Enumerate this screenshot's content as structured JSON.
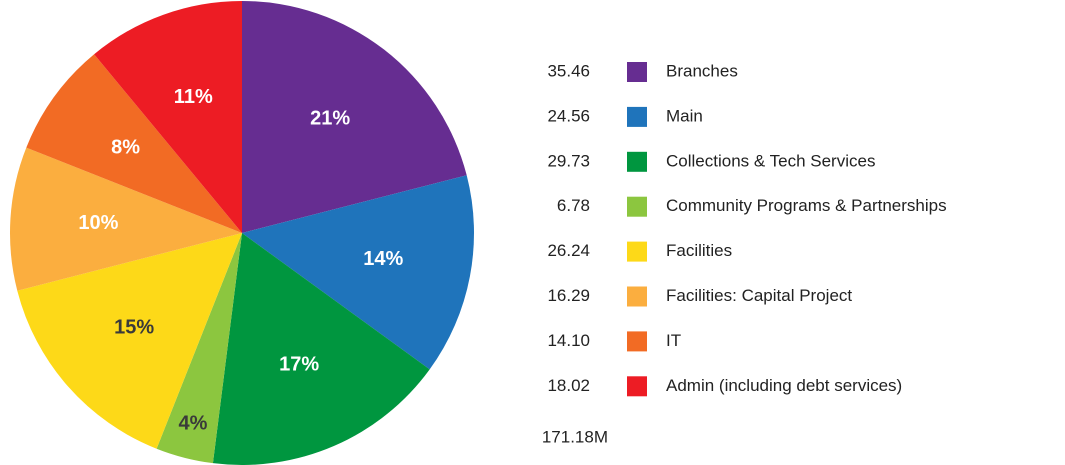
{
  "chart_data": {
    "type": "pie",
    "categories": [
      "Branches",
      "Main",
      "Collections & Tech Services",
      "Community Programs & Partnerships",
      "Facilities",
      "Facilities: Capital Project",
      "IT",
      "Admin (including debt services)"
    ],
    "values": [
      21,
      14,
      17,
      4,
      15,
      10,
      8,
      11
    ],
    "value_labels": [
      "21%",
      "14%",
      "17%",
      "4%",
      "15%",
      "10%",
      "8%",
      "11%"
    ],
    "colors": [
      "#662d91",
      "#1f74bb",
      "#00963f",
      "#8cc63f",
      "#fdd918",
      "#fbae3f",
      "#f26b24",
      "#ed1c24"
    ],
    "amounts": [
      "35.46",
      "24.56",
      "29.73",
      "6.78",
      "26.24",
      "16.29",
      "14.10",
      "18.02"
    ],
    "total": "171.18M"
  }
}
